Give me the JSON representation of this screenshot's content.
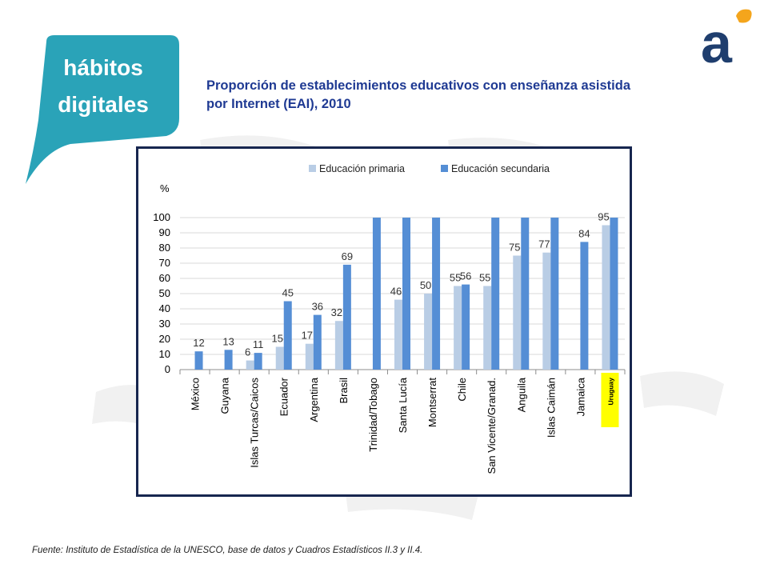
{
  "badge": {
    "line1": "hábitos",
    "line2": "digitales"
  },
  "logo": {
    "letter": "a"
  },
  "title": "Proporción de establecimientos educativos con enseñanza asistida por Internet (EAI), 2010",
  "source": "Fuente: Instituto de Estadística de la UNESCO, base de datos y Cuadros Estadísticos II.3 y II.4.",
  "colors": {
    "brand_teal": "#2aa3b8",
    "brand_navy": "#1f3e6e",
    "brand_orange": "#f4a51c",
    "primaria": "#b9cde5",
    "secundaria": "#558ed5",
    "highlight": "#ffff00",
    "frame": "#17264f"
  },
  "chart_data": {
    "type": "bar",
    "ylabel": "%",
    "ylim": [
      0,
      100
    ],
    "yticks": [
      0,
      10,
      20,
      30,
      40,
      50,
      60,
      70,
      80,
      90,
      100
    ],
    "grid": true,
    "legend_position": "top",
    "categories": [
      "México",
      "Guyana",
      "Islas Turcas/Caicos",
      "Ecuador",
      "Argentina",
      "Brasil",
      "Trinidad/Tobago",
      "Santa Lucía",
      "Montserrat",
      "Chile",
      "San Vicente/Granad.",
      "Anguila",
      "Islas Caimán",
      "Jamaica",
      "Uruguay"
    ],
    "highlight_category": "Uruguay",
    "series": [
      {
        "name": "Educación primaria",
        "color": "#b9cde5",
        "values": [
          null,
          null,
          6,
          15,
          17,
          32,
          null,
          46,
          50,
          55,
          55,
          75,
          77,
          null,
          95
        ],
        "labels": [
          "",
          "",
          "6",
          "15",
          "17",
          "32",
          "",
          "46",
          "50",
          "55",
          "55",
          "75",
          "77",
          "",
          "95"
        ]
      },
      {
        "name": "Educación secundaria",
        "color": "#558ed5",
        "values": [
          12,
          13,
          11,
          45,
          36,
          69,
          100,
          100,
          100,
          56,
          100,
          100,
          100,
          84,
          100
        ],
        "labels": [
          "12",
          "13",
          "11",
          "45",
          "36",
          "69",
          "",
          "",
          "",
          "56",
          "",
          "",
          "",
          "84",
          ""
        ]
      }
    ]
  }
}
